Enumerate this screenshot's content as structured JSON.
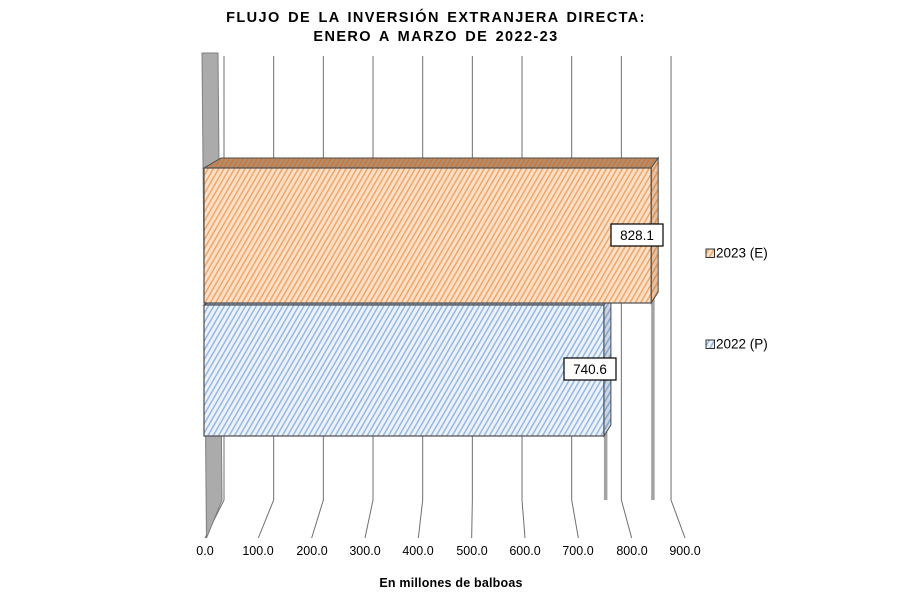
{
  "chart_data": {
    "type": "bar",
    "orientation": "horizontal",
    "style": "3d",
    "title_line1": "FLUJO DE LA INVERSIÓN EXTRANJERA DIRECTA:",
    "title_line2": "ENERO A MARZO DE 2022-23",
    "xlabel": "En millones de balboas",
    "xlim": [
      0,
      900
    ],
    "x_ticks": [
      0,
      100,
      200,
      300,
      400,
      500,
      600,
      700,
      800,
      900
    ],
    "x_tick_labels": [
      "0.0",
      "100.0",
      "200.0",
      "300.0",
      "400.0",
      "500.0",
      "600.0",
      "700.0",
      "800.0",
      "900.0"
    ],
    "grid": true,
    "legend_position": "right",
    "categories": [
      "2023 (E)",
      "2022 (P)"
    ],
    "series": [
      {
        "name": "2023 (E)",
        "value": 828.1,
        "label": "828.1",
        "fill": "#FBE0C7",
        "hatch": "#F0A160",
        "top_fill": "#B18D6E",
        "top_hatch": "#CE7434",
        "side_tint": "rgba(120,62,12,0.18)"
      },
      {
        "name": "2022 (P)",
        "value": 740.6,
        "label": "740.6",
        "fill": "#EDF3FB",
        "hatch": "#8FB2DF",
        "top_fill": "#9FB4CB",
        "top_hatch": "#6B94C4",
        "side_tint": "rgba(30,60,110,0.16)"
      }
    ],
    "colors": {
      "background": "#FFFFFF",
      "text": "#000000",
      "gridline": "#6F6F6F",
      "wall": "#ABABAB",
      "wall_edge": "#7F7F7F",
      "bar_outline": "#4D4D4D",
      "shadow": "#A3A3A3",
      "label_box_bg": "#FFFFFF",
      "label_box_border": "#000000"
    }
  }
}
